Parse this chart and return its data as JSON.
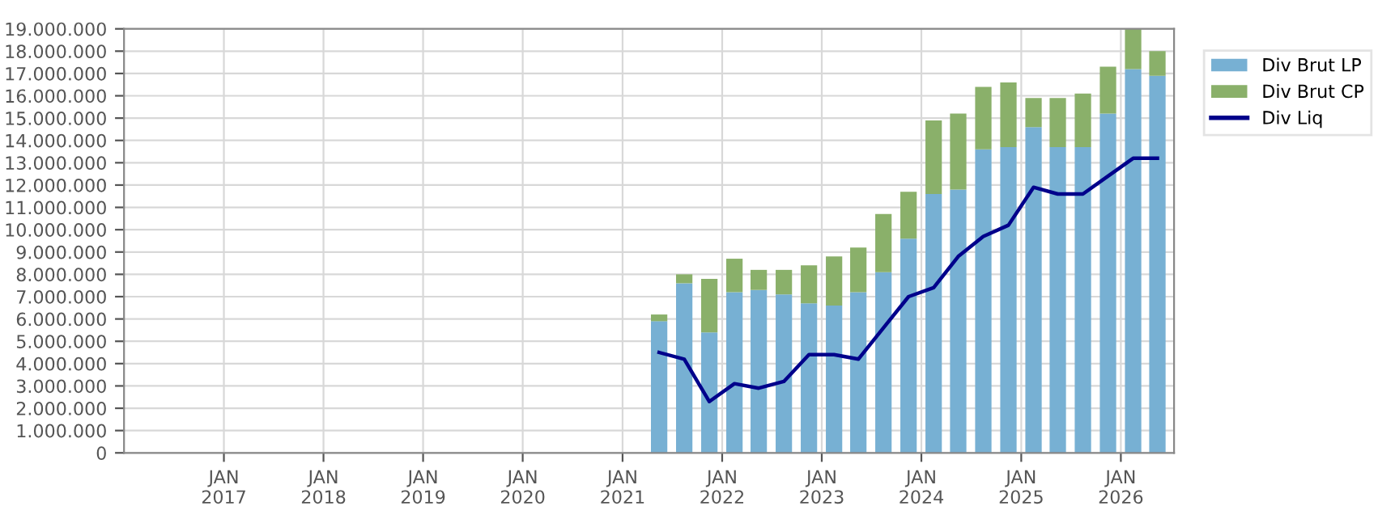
{
  "chart_data": {
    "type": "bar",
    "stacked": true,
    "x": [
      "2021-05-15",
      "2021-08-15",
      "2021-11-15",
      "2022-02-15",
      "2022-05-15",
      "2022-08-15",
      "2022-11-15",
      "2023-02-15",
      "2023-05-15",
      "2023-08-15",
      "2023-11-15",
      "2024-02-15",
      "2024-05-15",
      "2024-08-15",
      "2024-11-15",
      "2025-02-15",
      "2025-05-15",
      "2025-08-15",
      "2025-11-15",
      "2026-02-15",
      "2026-05-15"
    ],
    "series": [
      {
        "name": "Div Brut LP",
        "color": "#77b0d3",
        "values": [
          5900000,
          7600000,
          5400000,
          7200000,
          7300000,
          7100000,
          6700000,
          6600000,
          7200000,
          8100000,
          9600000,
          11600000,
          11800000,
          13600000,
          13700000,
          14600000,
          13700000,
          13700000,
          15200000,
          17200000,
          16900000
        ]
      },
      {
        "name": "Div Brut CP",
        "color": "#8ab06a",
        "values": [
          300000,
          400000,
          2400000,
          1500000,
          900000,
          1100000,
          1700000,
          2200000,
          2000000,
          2600000,
          2100000,
          3300000,
          3400000,
          2800000,
          2900000,
          1300000,
          2200000,
          2400000,
          2100000,
          1800000,
          1100000
        ]
      },
      {
        "name": "Div Liq",
        "type": "line",
        "color": "#00008b",
        "values": [
          4500000,
          4200000,
          2300000,
          3100000,
          2900000,
          3200000,
          4400000,
          4400000,
          4200000,
          5600000,
          7000000,
          7400000,
          8800000,
          9700000,
          10200000,
          11900000,
          11600000,
          11600000,
          12400000,
          13200000,
          13200000
        ]
      }
    ],
    "xlim": [
      "2016-01-01",
      "2026-07-15"
    ],
    "xticks": [
      {
        "value": "2017-01-01",
        "label": "JAN\n2017"
      },
      {
        "value": "2018-01-01",
        "label": "JAN\n2018"
      },
      {
        "value": "2019-01-01",
        "label": "JAN\n2019"
      },
      {
        "value": "2020-01-01",
        "label": "JAN\n2020"
      },
      {
        "value": "2021-01-01",
        "label": "JAN\n2021"
      },
      {
        "value": "2022-01-01",
        "label": "JAN\n2022"
      },
      {
        "value": "2023-01-01",
        "label": "JAN\n2023"
      },
      {
        "value": "2024-01-01",
        "label": "JAN\n2024"
      },
      {
        "value": "2025-01-01",
        "label": "JAN\n2025"
      },
      {
        "value": "2026-01-01",
        "label": "JAN\n2026"
      }
    ],
    "ylim": [
      0,
      19000000
    ],
    "yticks": [
      0,
      {
        "value": 1000000,
        "label": "1.000.000"
      },
      {
        "value": 2000000,
        "label": "2.000.000"
      },
      {
        "value": 3000000,
        "label": "3.000.000"
      },
      {
        "value": 4000000,
        "label": "4.000.000"
      },
      {
        "value": 5000000,
        "label": "5.000.000"
      },
      {
        "value": 6000000,
        "label": "6.000.000"
      },
      {
        "value": 7000000,
        "label": "7.000.000"
      },
      {
        "value": 8000000,
        "label": "8.000.000"
      },
      {
        "value": 9000000,
        "label": "9.000.000"
      },
      {
        "value": 10000000,
        "label": "10.000.000"
      },
      {
        "value": 11000000,
        "label": "11.000.000"
      },
      {
        "value": 12000000,
        "label": "12.000.000"
      },
      {
        "value": 13000000,
        "label": "13.000.000"
      },
      {
        "value": 14000000,
        "label": "14.000.000"
      },
      {
        "value": 15000000,
        "label": "15.000.000"
      },
      {
        "value": 16000000,
        "label": "16.000.000"
      },
      {
        "value": 17000000,
        "label": "17.000.000"
      },
      {
        "value": 18000000,
        "label": "18.000.000"
      },
      {
        "value": 19000000,
        "label": "19.000.000"
      }
    ],
    "grid": true,
    "legend": "top right"
  }
}
